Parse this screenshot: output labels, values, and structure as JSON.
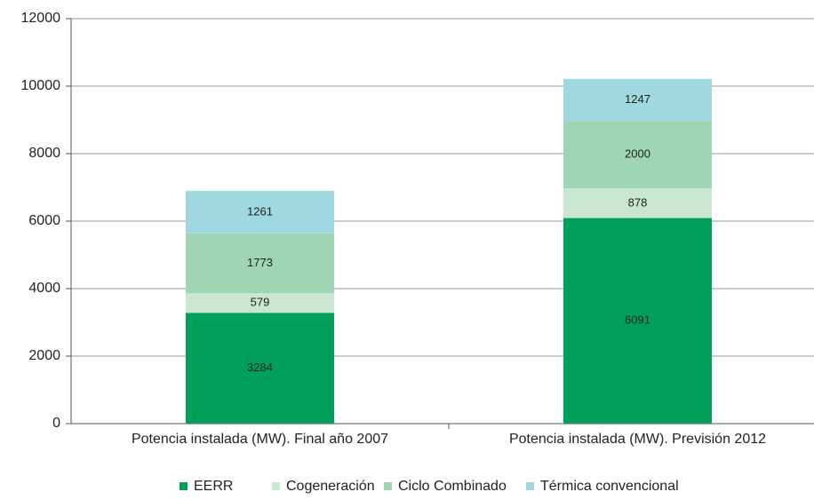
{
  "chart_data": {
    "type": "stacked_bar",
    "categories": [
      "Potencia instalada (MW). Final año 2007",
      "Potencia instalada (MW). Previsión 2012"
    ],
    "series": [
      {
        "name": "EERR",
        "color": "#00a05a",
        "values": [
          3284,
          6091
        ]
      },
      {
        "name": "Cogeneración",
        "color": "#c8e6d2",
        "values": [
          579,
          878
        ]
      },
      {
        "name": "Ciclo Combinado",
        "color": "#9fd5b3",
        "values": [
          1773,
          2000
        ]
      },
      {
        "name": "Térmica convencional",
        "color": "#9fd8e0",
        "values": [
          1261,
          1247
        ]
      }
    ],
    "ylim": [
      0,
      12000
    ],
    "yticks": [
      0,
      2000,
      4000,
      6000,
      8000,
      10000,
      12000
    ],
    "grid": true,
    "legend": "bottom"
  }
}
